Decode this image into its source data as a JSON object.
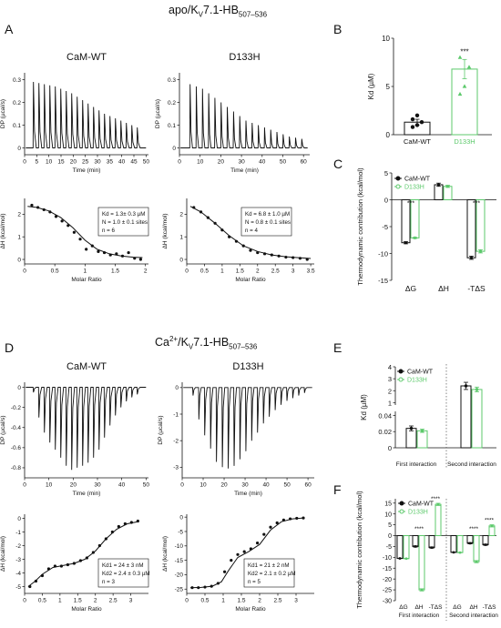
{
  "sections": {
    "top_title": {
      "prefix": "apo/K",
      "v": "V",
      "rest": "7.1-HB",
      "sub": "507–536"
    },
    "bottom_title": {
      "ca": "Ca",
      "ca_sup": "2+",
      "prefix": "/K",
      "v": "V",
      "rest": "7.1-HB",
      "sub": "507–536"
    }
  },
  "panels": {
    "A": "A",
    "B": "B",
    "C": "C",
    "D": "D",
    "E": "E",
    "F": "F"
  },
  "colors": {
    "wt": "#111111",
    "d133h": "#5cc96b",
    "axis": "#111111",
    "text": "#111111"
  },
  "chart_data": [
    {
      "id": "A-raw-WT",
      "type": "line",
      "title": "CaM-WT",
      "xlabel": "Time (min)",
      "ylabel": "DP (µcal/s)",
      "xticks": [
        0,
        5,
        10,
        15,
        20,
        25,
        30,
        35,
        40,
        45,
        50
      ],
      "yticks": [
        0,
        0.1,
        0.2,
        0.3
      ],
      "xlim": [
        0,
        51
      ],
      "ylim": [
        -0.03,
        0.33
      ],
      "direction": 1,
      "injections": 20,
      "t_first": 3.5,
      "t_step": 2.25,
      "peak_values": [
        0.29,
        0.285,
        0.28,
        0.275,
        0.27,
        0.26,
        0.25,
        0.24,
        0.225,
        0.21,
        0.195,
        0.18,
        0.165,
        0.15,
        0.14,
        0.13,
        0.12,
        0.11,
        0.1,
        0.09
      ]
    },
    {
      "id": "A-raw-D133H",
      "type": "line",
      "title": "D133H",
      "xlabel": "Time (min)",
      "ylabel": "DP (µcal/s)",
      "xticks": [
        0,
        10,
        20,
        30,
        40,
        50,
        60
      ],
      "yticks": [
        0,
        0.1,
        0.2,
        0.3
      ],
      "xlim": [
        0,
        63
      ],
      "ylim": [
        -0.03,
        0.33
      ],
      "direction": 1,
      "injections": 19,
      "t_first": 5,
      "t_step": 3,
      "peak_values": [
        0.28,
        0.27,
        0.26,
        0.24,
        0.22,
        0.2,
        0.18,
        0.16,
        0.14,
        0.12,
        0.11,
        0.1,
        0.09,
        0.08,
        0.07,
        0.06,
        0.05,
        0.045,
        0.04
      ]
    },
    {
      "id": "A-iso-WT",
      "type": "scatter",
      "xlabel": "Molar Ratio",
      "ylabel": "ΔH (kcal/mol)",
      "xticks": [
        0,
        0.5,
        1,
        1.5,
        2
      ],
      "yticks": [
        0,
        1,
        2
      ],
      "xlim": [
        0,
        2.05
      ],
      "ylim": [
        -0.2,
        2.7
      ],
      "x": [
        0.12,
        0.22,
        0.32,
        0.42,
        0.52,
        0.62,
        0.72,
        0.82,
        0.92,
        1.02,
        1.12,
        1.22,
        1.32,
        1.42,
        1.52,
        1.62,
        1.72,
        1.82,
        1.92
      ],
      "y": [
        2.4,
        2.3,
        2.2,
        2.1,
        1.9,
        1.7,
        1.5,
        1.2,
        0.9,
        0.45,
        0.6,
        0.35,
        0.3,
        0.2,
        0.25,
        0.15,
        0.3,
        0.05,
        0.0
      ],
      "fit": {
        "x": [
          0.05,
          0.2,
          0.4,
          0.6,
          0.8,
          1.0,
          1.2,
          1.4,
          1.6,
          1.8,
          1.95
        ],
        "y": [
          2.35,
          2.3,
          2.15,
          1.85,
          1.4,
          0.85,
          0.45,
          0.25,
          0.15,
          0.1,
          0.08
        ]
      },
      "annotations": [
        "Kd = 1.3± 0.3 µM",
        "N = 1.0 ± 0.1 sites",
        "n = 6"
      ]
    },
    {
      "id": "A-iso-D133H",
      "type": "scatter",
      "xlabel": "Molar Ratio",
      "ylabel": "ΔH (kcal/mol)",
      "xticks": [
        0,
        0.5,
        1,
        1.5,
        2,
        2.5,
        3,
        3.5
      ],
      "yticks": [
        0,
        1,
        2
      ],
      "xlim": [
        0,
        3.6
      ],
      "ylim": [
        -0.2,
        2.7
      ],
      "x": [
        0.2,
        0.4,
        0.6,
        0.8,
        1.0,
        1.2,
        1.4,
        1.6,
        1.8,
        2.0,
        2.2,
        2.4,
        2.6,
        2.8,
        3.0,
        3.2,
        3.4
      ],
      "y": [
        2.3,
        2.1,
        1.85,
        1.6,
        1.3,
        1.0,
        0.8,
        0.6,
        0.4,
        0.3,
        0.25,
        0.2,
        0.15,
        0.1,
        0.08,
        0.05,
        0.0
      ],
      "fit": {
        "x": [
          0.1,
          0.4,
          0.8,
          1.2,
          1.6,
          2.0,
          2.4,
          2.8,
          3.2,
          3.5
        ],
        "y": [
          2.35,
          2.1,
          1.6,
          1.05,
          0.6,
          0.35,
          0.2,
          0.12,
          0.07,
          0.04
        ]
      },
      "annotations": [
        "Kd = 6.8 ± 1.0 µM",
        "N = 0.8 ± 0.1 sites",
        "n = 4"
      ]
    },
    {
      "id": "B",
      "type": "bar",
      "categories": [
        "CaM-WT",
        "D133H"
      ],
      "values": [
        1.3,
        6.8
      ],
      "errors": [
        0.3,
        1.0
      ],
      "points": [
        [
          0.8,
          1.0,
          1.3,
          1.6,
          2.0
        ],
        [
          4.2,
          5.0,
          7.0,
          8.0
        ]
      ],
      "ylabel": "Kd (µM)",
      "yticks": [
        0,
        5,
        10
      ],
      "ylim": [
        0,
        10
      ],
      "annotations": [
        "***"
      ]
    },
    {
      "id": "C",
      "type": "bar",
      "categories": [
        "ΔG",
        "ΔH",
        "-TΔS"
      ],
      "series": [
        {
          "name": "CaM-WT",
          "values": [
            -8.0,
            2.8,
            -10.8
          ],
          "errors": [
            0.2,
            0.3,
            0.3
          ]
        },
        {
          "name": "D133H",
          "values": [
            -7.1,
            2.5,
            -9.6
          ],
          "errors": [
            0.1,
            0.2,
            0.3
          ]
        }
      ],
      "ylabel": "Thermodynamic contribution (kcal/mol)",
      "yticks": [
        -15,
        -10,
        -5,
        0,
        5
      ],
      "ylim": [
        -15,
        5
      ],
      "annotations": [
        "***",
        "***"
      ]
    },
    {
      "id": "D-raw-WT",
      "type": "line",
      "title": "CaM-WT",
      "xlabel": "Time (min)",
      "ylabel": "DP (µcal/s)",
      "xticks": [
        0,
        10,
        20,
        30,
        40,
        50
      ],
      "yticks": [
        -0.8,
        -0.6,
        -0.4,
        -0.2,
        0
      ],
      "xlim": [
        0,
        51
      ],
      "ylim": [
        -0.9,
        0.05
      ],
      "direction": -1,
      "injections": 20,
      "t_first": 3.5,
      "t_step": 2.25,
      "peak_values": [
        0.05,
        0.3,
        0.45,
        0.55,
        0.62,
        0.7,
        0.78,
        0.82,
        0.8,
        0.78,
        0.75,
        0.7,
        0.62,
        0.5,
        0.38,
        0.28,
        0.2,
        0.14,
        0.1,
        0.07
      ]
    },
    {
      "id": "D-raw-D133H",
      "type": "line",
      "title": "D133H",
      "xlabel": "Time (min)",
      "ylabel": "DP (µcal/s)",
      "xticks": [
        0,
        10,
        20,
        30,
        40,
        50,
        60
      ],
      "yticks": [
        -3,
        -2,
        -1,
        0
      ],
      "xlim": [
        0,
        63
      ],
      "ylim": [
        -3.4,
        0.2
      ],
      "direction": -1,
      "injections": 20,
      "t_first": 5,
      "t_step": 2.8,
      "peak_values": [
        0.3,
        1.2,
        1.8,
        2.3,
        2.8,
        3.0,
        3.05,
        2.95,
        2.7,
        2.4,
        2.0,
        1.7,
        1.35,
        1.1,
        0.85,
        0.65,
        0.5,
        0.4,
        0.3,
        0.2
      ]
    },
    {
      "id": "D-iso-WT",
      "type": "scatter",
      "xlabel": "Molar Ratio",
      "ylabel": "ΔH (kcal/mol)",
      "xticks": [
        0,
        0.5,
        1,
        1.5,
        2,
        2.5,
        3
      ],
      "yticks": [
        -5,
        -4,
        -3,
        -2,
        -1,
        0
      ],
      "xlim": [
        0,
        3.5
      ],
      "ylim": [
        -5.5,
        0.3
      ],
      "x": [
        0.15,
        0.32,
        0.5,
        0.68,
        0.86,
        1.04,
        1.22,
        1.4,
        1.58,
        1.76,
        1.94,
        2.12,
        2.3,
        2.48,
        2.66,
        2.84,
        3.02,
        3.2
      ],
      "y": [
        -5.0,
        -4.6,
        -4.2,
        -3.7,
        -3.5,
        -3.5,
        -3.4,
        -3.3,
        -3.1,
        -2.9,
        -2.5,
        -2.0,
        -1.5,
        -1.0,
        -0.6,
        -0.4,
        -0.3,
        -0.2
      ],
      "fit": {
        "x": [
          0.1,
          0.3,
          0.5,
          0.8,
          1.1,
          1.4,
          1.7,
          2.0,
          2.3,
          2.6,
          2.9,
          3.2
        ],
        "y": [
          -5.0,
          -4.6,
          -4.1,
          -3.6,
          -3.45,
          -3.3,
          -3.0,
          -2.4,
          -1.5,
          -0.8,
          -0.4,
          -0.25
        ]
      },
      "annotations": [
        "Kd1 = 24 ± 3 nM",
        "Kd2 = 2.4 ± 0.3 µM",
        "n = 3"
      ]
    },
    {
      "id": "D-iso-D133H",
      "type": "scatter",
      "xlabel": "Molar Ratio",
      "ylabel": "ΔH (kcal/mol)",
      "xticks": [
        0,
        0.5,
        1,
        1.5,
        2,
        2.5,
        3
      ],
      "yticks": [
        -25,
        -20,
        -15,
        -10,
        -5,
        0
      ],
      "xlim": [
        0,
        3.5
      ],
      "ylim": [
        -26.5,
        1
      ],
      "x": [
        0.15,
        0.32,
        0.5,
        0.68,
        0.86,
        1.04,
        1.22,
        1.4,
        1.58,
        1.76,
        1.94,
        2.12,
        2.3,
        2.48,
        2.66,
        2.84,
        3.02,
        3.2
      ],
      "y": [
        -24.5,
        -24.5,
        -24.3,
        -24.0,
        -23.0,
        -19.0,
        -15.0,
        -13.0,
        -12.0,
        -11.0,
        -9.0,
        -6.0,
        -3.5,
        -2.0,
        -1.0,
        -0.6,
        -0.4,
        -0.3
      ],
      "fit": {
        "x": [
          0.1,
          0.4,
          0.7,
          0.95,
          1.15,
          1.4,
          1.7,
          2.0,
          2.3,
          2.6,
          2.9,
          3.2
        ],
        "y": [
          -24.5,
          -24.4,
          -24.0,
          -22.5,
          -18.5,
          -14.0,
          -12.0,
          -9.5,
          -4.5,
          -1.6,
          -0.6,
          -0.3
        ]
      },
      "annotations": [
        "Kd1 = 21 ± 2 nM",
        "Kd2 = 2.1 ± 0.2 µM",
        "n = 5"
      ]
    },
    {
      "id": "E",
      "type": "bar",
      "groups": [
        "First interaction",
        "Second interaction"
      ],
      "series": [
        {
          "name": "CaM-WT",
          "values": [
            0.024,
            2.4
          ],
          "errors": [
            0.003,
            0.3
          ]
        },
        {
          "name": "D133H",
          "values": [
            0.021,
            2.1
          ],
          "errors": [
            0.002,
            0.2
          ]
        }
      ],
      "ylabel": "Kd (µM)",
      "yticks_upper": [
        1,
        2,
        3,
        4
      ],
      "yticks_lower": [
        0,
        0.02,
        0.04
      ],
      "ylim_upper": [
        0.8,
        4
      ],
      "ylim_lower": [
        0,
        0.045
      ]
    },
    {
      "id": "F",
      "type": "bar",
      "groups": [
        "First interaction",
        "Second interaction"
      ],
      "categories": [
        "ΔG",
        "ΔH",
        "-TΔS",
        "ΔG",
        "ΔH",
        "-TΔS"
      ],
      "series": [
        {
          "name": "CaM-WT",
          "values": [
            -10.5,
            -5.0,
            -5.5,
            -7.7,
            -3.5,
            -4.2
          ],
          "errors": [
            0.1,
            0.3,
            0.3,
            0.1,
            0.3,
            0.3
          ]
        },
        {
          "name": "D133H",
          "values": [
            -10.6,
            -25.0,
            14.4,
            -7.8,
            -12.0,
            4.5
          ],
          "errors": [
            0.1,
            0.5,
            0.5,
            0.1,
            0.5,
            0.5
          ]
        }
      ],
      "ylabel": "Thermodynamic contribution (kcal/mol)",
      "yticks": [
        -30,
        -25,
        -20,
        -15,
        -10,
        -5,
        0,
        5,
        10,
        15
      ],
      "ylim": [
        -30,
        17
      ],
      "annotations": [
        "****",
        "****",
        "****",
        "****"
      ]
    }
  ]
}
